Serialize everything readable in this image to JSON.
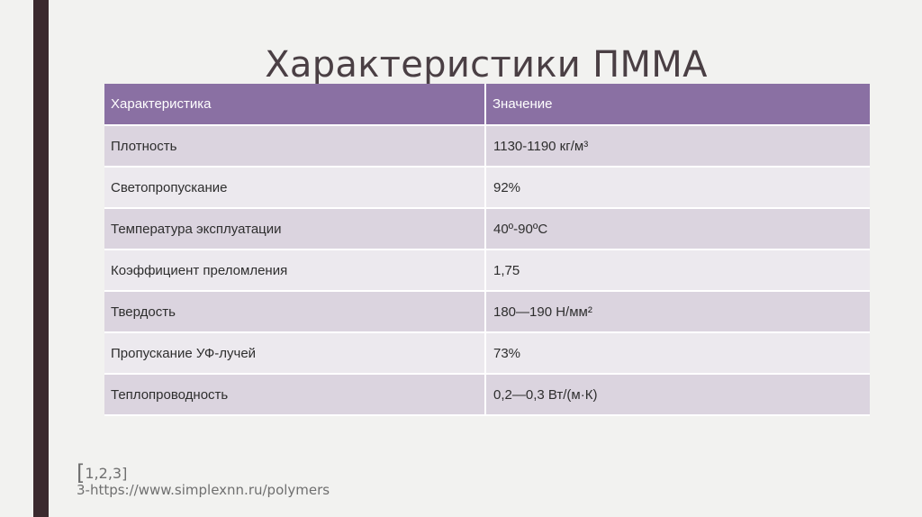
{
  "slide": {
    "title": "Характеристики ПММА"
  },
  "table": {
    "headers": [
      "Характеристика",
      "Значение"
    ],
    "rows": [
      {
        "name": "Плотность",
        "value": "1130-1190 кг/м³"
      },
      {
        "name": "Светопропускание",
        "value": "92%"
      },
      {
        "name": "Температура эксплуатации",
        "value": "40º-90ºC"
      },
      {
        "name": "Коэффициент преломления",
        "value": "1,75"
      },
      {
        "name": "Твердость",
        "value": "180—190 Н/мм²"
      },
      {
        "name": "Пропускание УФ-лучей",
        "value": "73%"
      },
      {
        "name": "Теплопроводность",
        "value": "0,2—0,3 Вт/(м·К)"
      }
    ]
  },
  "references": {
    "bracket_open": "[",
    "numbers": "1,2,3]",
    "source": "3-https://www.simplexnn.ru/polymers"
  },
  "colors": {
    "accent_bar": "#3b2a2e",
    "header_bg": "#8a70a3",
    "row_odd": "#dbd4df",
    "row_even": "#ece9ee"
  }
}
